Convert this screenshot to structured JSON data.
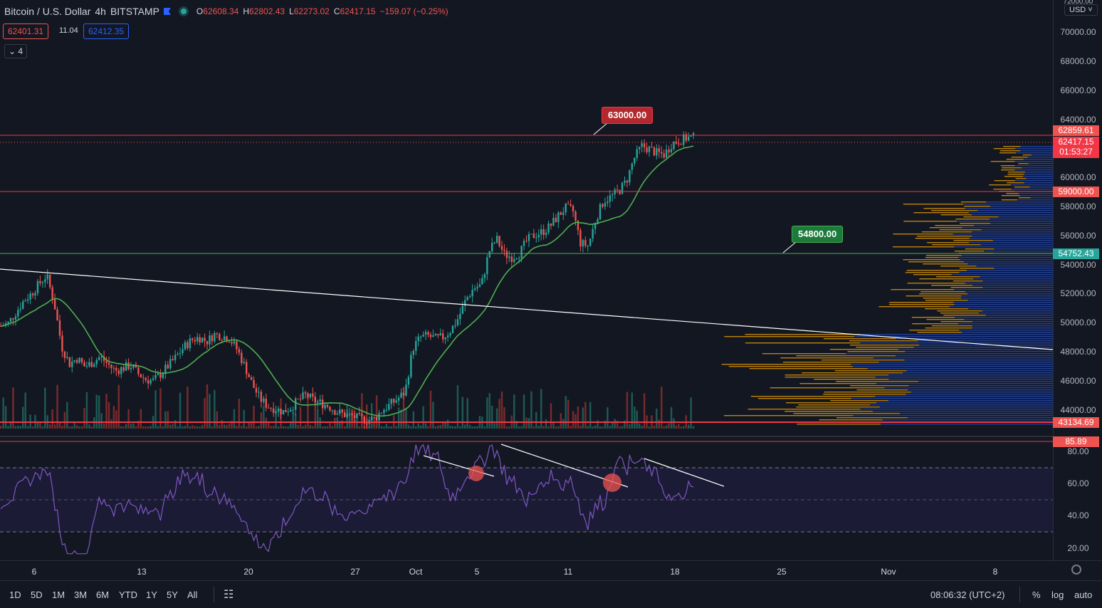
{
  "header": {
    "symbol": "Bitcoin / U.S. Dollar",
    "interval": "4h",
    "exchange": "BITSTAMP",
    "open_label": "O",
    "open": "62608.34",
    "high_label": "H",
    "high": "62802.43",
    "low_label": "L",
    "low": "62273.02",
    "close_label": "C",
    "close": "62417.15",
    "change": "−159.07 (−0.25%)"
  },
  "bid": "62401.31",
  "spread": "11.04",
  "ask": "62412.35",
  "indicators_count": "4",
  "currency": "USD",
  "price_axis": {
    "top_label": "72000.00",
    "labels": [
      "70000.00",
      "68000.00",
      "66000.00",
      "64000.00",
      "60000.00",
      "58000.00",
      "56000.00",
      "54000.00",
      "52000.00",
      "50000.00",
      "48000.00",
      "46000.00",
      "44000.00"
    ]
  },
  "tags": {
    "upper_line": "62859.61",
    "last_price": "62417.15",
    "countdown": "01:53:27",
    "support_59k": "59000.00",
    "support_green": "54752.43",
    "lower_line": "43134.69",
    "rsi_line": "85.89"
  },
  "annotations": {
    "resistance": "63000.00",
    "support": "54800.00"
  },
  "rsi_axis": [
    "80.00",
    "60.00",
    "40.00",
    "20.00"
  ],
  "time_axis": [
    "6",
    "13",
    "20",
    "27",
    "Oct",
    "5",
    "11",
    "18",
    "25",
    "Nov",
    "8"
  ],
  "bottom": {
    "ranges": [
      "1D",
      "5D",
      "1M",
      "3M",
      "6M",
      "YTD",
      "1Y",
      "5Y",
      "All"
    ],
    "clock": "08:06:32 (UTC+2)",
    "percent": "%",
    "log": "log",
    "auto": "auto"
  },
  "colors": {
    "background": "#131722",
    "bull": "#26a69a",
    "bear": "#ef5350",
    "ma": "#4caf50",
    "rsi": "#7e57c2",
    "resistance_line": "#f23645",
    "support_line": "#4caf50",
    "volume_profile_up": "#2962ff",
    "volume_profile_down": "#f7a600"
  },
  "chart_data": {
    "type": "candlestick",
    "ylim": [
      42000,
      72000
    ],
    "horizontal_levels": [
      62859.61,
      59000.0,
      54752.43,
      43134.69
    ],
    "close_series": [
      49000,
      49200,
      50000,
      50800,
      51300,
      52000,
      52600,
      50600,
      47500,
      46300,
      46700,
      46100,
      46400,
      46800,
      46300,
      45800,
      46000,
      46200,
      45600,
      45200,
      45100,
      45600,
      46200,
      46800,
      47500,
      48000,
      48200,
      47900,
      48400,
      48300,
      48100,
      47300,
      46100,
      44800,
      43800,
      43300,
      43100,
      42900,
      43200,
      43700,
      44100,
      43700,
      43500,
      43300,
      42900,
      42700,
      42600,
      42400,
      42300,
      42400,
      43000,
      43400,
      43800,
      44300,
      47400,
      48200,
      48300,
      48100,
      48200,
      48700,
      49600,
      50900,
      51700,
      51900,
      54300,
      55200,
      54100,
      53900,
      54200,
      55100,
      55500,
      55700,
      56100,
      56800,
      57400,
      57200,
      54900,
      54700,
      56600,
      57900,
      58200,
      58600,
      59300,
      60900,
      61800,
      61600,
      61300,
      61200,
      62000,
      62200,
      62400,
      62417
    ]
  }
}
